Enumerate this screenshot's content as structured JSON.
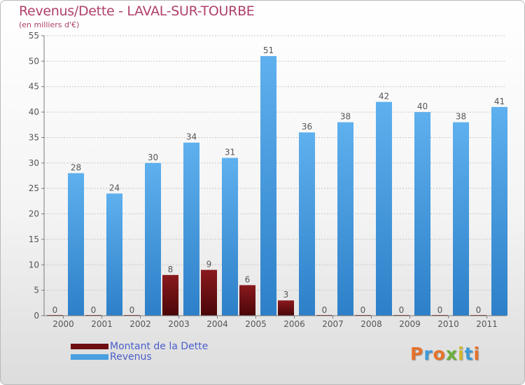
{
  "chart_data": {
    "type": "bar",
    "title": "Revenus/Dette - LAVAL-SUR-TOURBE",
    "subtitle": "(en milliers d'€)",
    "categories": [
      "2000",
      "2001",
      "2002",
      "2003",
      "2004",
      "2005",
      "2006",
      "2007",
      "2008",
      "2009",
      "2010",
      "2011"
    ],
    "series": [
      {
        "name": "Montant de la Dette",
        "color": "#6e0e10",
        "values": [
          0,
          0,
          0,
          8,
          9,
          6,
          3,
          0,
          0,
          0,
          0,
          0
        ]
      },
      {
        "name": "Revenus",
        "color": "#4a9fe0",
        "values": [
          28,
          24,
          30,
          34,
          31,
          51,
          36,
          38,
          42,
          40,
          38,
          41
        ]
      }
    ],
    "yticks": [
      0,
      5,
      10,
      15,
      20,
      25,
      30,
      35,
      40,
      45,
      50,
      55
    ],
    "ylim": [
      0,
      55
    ],
    "grid": true
  },
  "logo": {
    "text": "Proxiti",
    "colors": [
      "#e5722a",
      "#3f9ad6",
      "#e5722a",
      "#6cae3b",
      "#d4b82a",
      "#3f9ad6",
      "#e5722a"
    ]
  }
}
